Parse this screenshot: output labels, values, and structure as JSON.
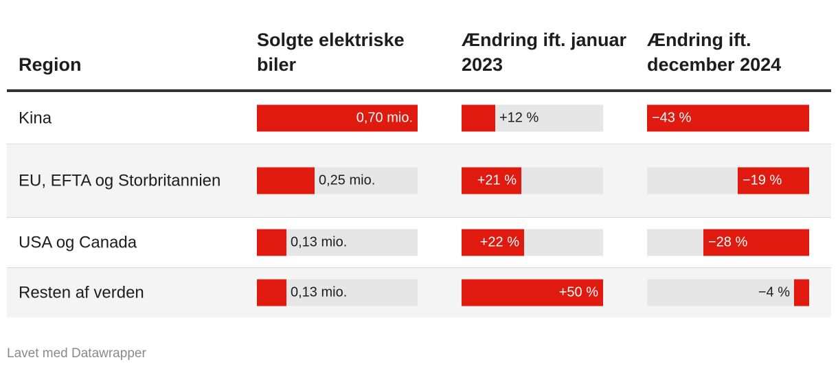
{
  "colors": {
    "bar_fill": "#e01a0f",
    "bar_track": "#e6e6e6",
    "header_rule": "#333333",
    "alt_row": "#f4f4f4"
  },
  "table": {
    "headers": [
      "Region",
      "Solgte elektriske biler",
      "Ændring ift. januar 2023",
      "Ændring ift. december 2024"
    ]
  },
  "footer": "Lavet med Datawrapper",
  "chart_data": {
    "type": "table",
    "columns": [
      "Region",
      "Solgte elektriske biler",
      "Ændring ift. januar 2023",
      "Ændring ift. december 2024"
    ],
    "rows": [
      {
        "region": "Kina",
        "sold": 0.7,
        "sold_label": "0,70 mio.",
        "chg_2023": 12,
        "chg_2023_label": "+12 %",
        "chg_2024": -43,
        "chg_2024_label": "−43 %"
      },
      {
        "region": "EU, EFTA og Storbritannien",
        "sold": 0.25,
        "sold_label": "0,25 mio.",
        "chg_2023": 21,
        "chg_2023_label": "+21 %",
        "chg_2024": -19,
        "chg_2024_label": "−19 %"
      },
      {
        "region": "USA og Canada",
        "sold": 0.13,
        "sold_label": "0,13 mio.",
        "chg_2023": 22,
        "chg_2023_label": "+22 %",
        "chg_2024": -28,
        "chg_2024_label": "−28 %"
      },
      {
        "region": "Resten af verden",
        "sold": 0.13,
        "sold_label": "0,13 mio.",
        "chg_2023": 50,
        "chg_2023_label": "+50 %",
        "chg_2024": -4,
        "chg_2024_label": "−4 %"
      }
    ],
    "scales": {
      "sold_max": 0.7,
      "chg_2023_max": 50,
      "chg_2024_max": 43
    }
  }
}
